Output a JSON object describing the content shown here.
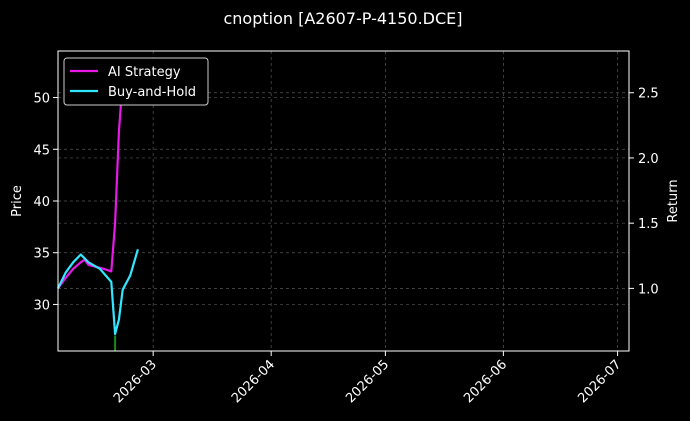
{
  "chart_data": {
    "type": "line",
    "title": "cnoption [A2607-P-4150.DCE]",
    "ylabel": "Price",
    "y2label": "Return",
    "x_range": [
      "2026-02-04",
      "2026-07-04"
    ],
    "ylim": [
      25.5,
      54.5
    ],
    "y2lim": [
      0.52,
      2.82
    ],
    "x_ticks": [
      "2026-03",
      "2026-04",
      "2026-05",
      "2026-06",
      "2026-07"
    ],
    "y_ticks": [
      30,
      35,
      40,
      45,
      50
    ],
    "y2_ticks": [
      "1.0",
      "1.5",
      "2.0",
      "2.5"
    ],
    "grid": true,
    "legend_placement": "upper-left",
    "series": [
      {
        "name": "AI Strategy",
        "axis": "right",
        "color": "#e619e6",
        "points": [
          [
            "2026-02-04",
            1.0
          ],
          [
            "2026-02-06",
            1.08
          ],
          [
            "2026-02-08",
            1.15
          ],
          [
            "2026-02-10",
            1.2
          ],
          [
            "2026-02-11",
            1.22
          ],
          [
            "2026-02-12",
            1.18
          ],
          [
            "2026-02-16",
            1.15
          ],
          [
            "2026-02-18",
            1.13
          ],
          [
            "2026-02-19",
            1.5
          ],
          [
            "2026-02-20",
            2.2
          ],
          [
            "2026-02-21",
            2.6
          ],
          [
            "2026-02-22",
            2.77
          ]
        ]
      },
      {
        "name": "Buy-and-Hold",
        "axis": "right",
        "color": "#33e6ff",
        "points": [
          [
            "2026-02-04",
            1.0
          ],
          [
            "2026-02-06",
            1.12
          ],
          [
            "2026-02-08",
            1.2
          ],
          [
            "2026-02-10",
            1.26
          ],
          [
            "2026-02-12",
            1.2
          ],
          [
            "2026-02-15",
            1.15
          ],
          [
            "2026-02-18",
            1.05
          ],
          [
            "2026-02-19",
            0.65
          ],
          [
            "2026-02-20",
            0.76
          ],
          [
            "2026-02-21",
            0.99
          ],
          [
            "2026-02-23",
            1.1
          ],
          [
            "2026-02-25",
            1.3
          ]
        ]
      }
    ],
    "price_marks": [
      {
        "x": "2026-02-19",
        "y_from": 25.5,
        "y_to": 27.0,
        "color": "#1a8c1a"
      }
    ]
  }
}
